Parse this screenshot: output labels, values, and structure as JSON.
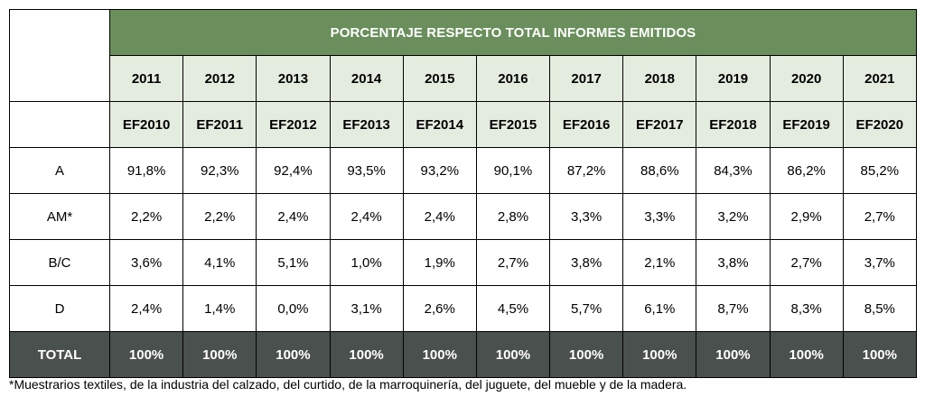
{
  "table": {
    "title": "PORCENTAJE RESPECTO TOTAL INFORMES EMITIDOS",
    "years": [
      "2011",
      "2012",
      "2013",
      "2014",
      "2015",
      "2016",
      "2017",
      "2018",
      "2019",
      "2020",
      "2021"
    ],
    "exercises": [
      "EF2010",
      "EF2011",
      "EF2012",
      "EF2013",
      "EF2014",
      "EF2015",
      "EF2016",
      "EF2017",
      "EF2018",
      "EF2019",
      "EF2020"
    ],
    "rows": [
      {
        "label": "A",
        "values": [
          "91,8%",
          "92,3%",
          "92,4%",
          "93,5%",
          "93,2%",
          "90,1%",
          "87,2%",
          "88,6%",
          "84,3%",
          "86,2%",
          "85,2%"
        ]
      },
      {
        "label": "AM*",
        "values": [
          "2,2%",
          "2,2%",
          "2,4%",
          "2,4%",
          "2,4%",
          "2,8%",
          "3,3%",
          "3,3%",
          "3,2%",
          "2,9%",
          "2,7%"
        ]
      },
      {
        "label": "B/C",
        "values": [
          "3,6%",
          "4,1%",
          "5,1%",
          "1,0%",
          "1,9%",
          "2,7%",
          "3,8%",
          "2,1%",
          "3,8%",
          "2,7%",
          "3,7%"
        ]
      },
      {
        "label": "D",
        "values": [
          "2,4%",
          "1,4%",
          "0,0%",
          "3,1%",
          "2,6%",
          "4,5%",
          "5,7%",
          "6,1%",
          "8,7%",
          "8,3%",
          "8,5%"
        ]
      }
    ],
    "total": {
      "label": "TOTAL",
      "values": [
        "100%",
        "100%",
        "100%",
        "100%",
        "100%",
        "100%",
        "100%",
        "100%",
        "100%",
        "100%",
        "100%"
      ]
    }
  },
  "footnote": "*Muestrarios textiles, de la industria del calzado, del curtido, de la marroquinería, del juguete, del mueble y de la madera.",
  "colors": {
    "title_background": "#6a8f5c",
    "header_background": "#e4ecdf",
    "total_background": "#4a504d"
  }
}
